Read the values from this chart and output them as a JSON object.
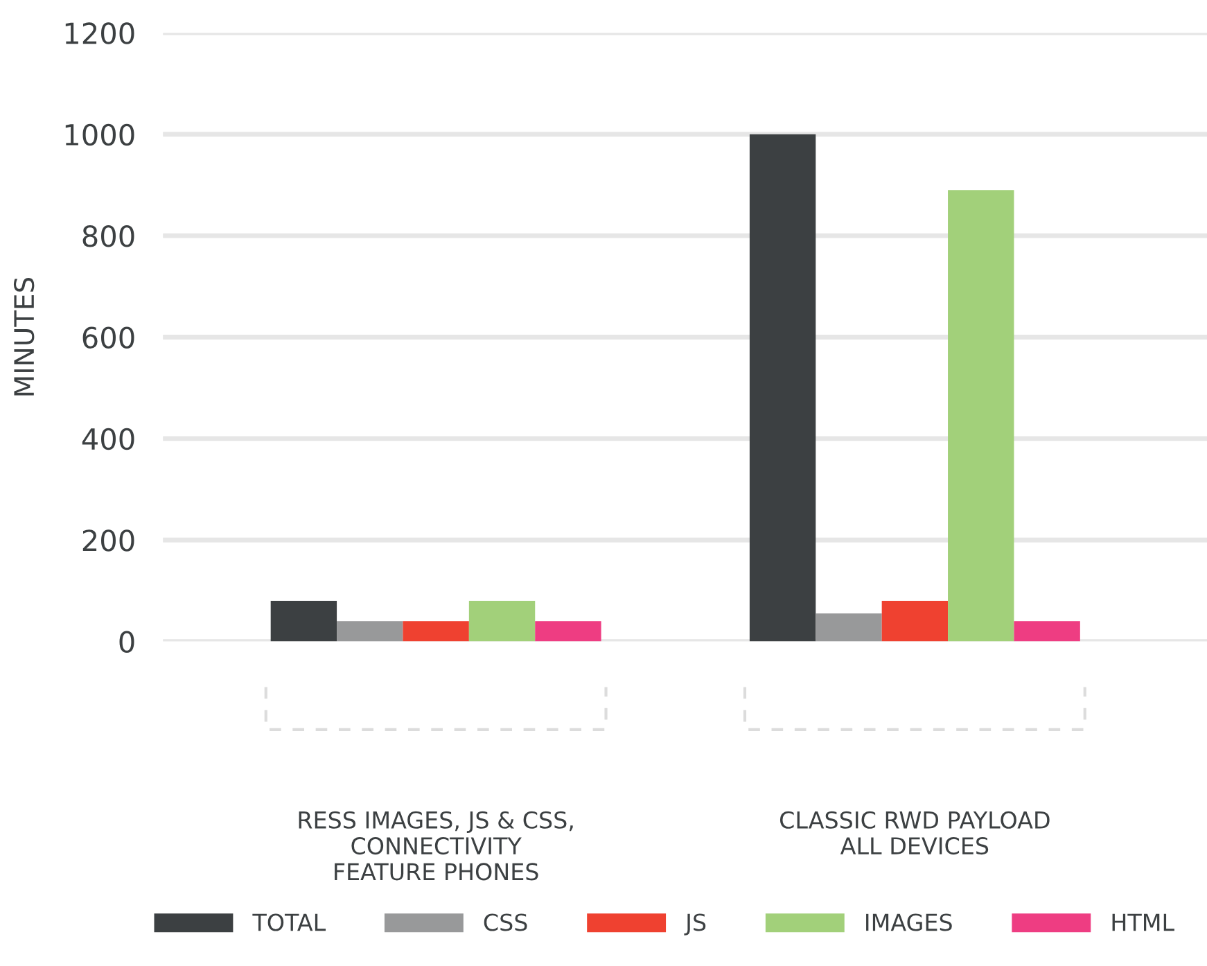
{
  "chart_data": {
    "type": "bar",
    "ylabel": "MINUTES",
    "categories": [
      "RESS IMAGES, JS & CSS,\nCONNECTIVITY\nFEATURE PHONES",
      "CLASSIC RWD PAYLOAD\nALL DEVICES"
    ],
    "series": [
      {
        "name": "TOTAL",
        "color": "#3c4042",
        "values": [
          80,
          1000
        ]
      },
      {
        "name": "CSS",
        "color": "#98999a",
        "values": [
          40,
          55
        ]
      },
      {
        "name": "JS",
        "color": "#ef4130",
        "values": [
          40,
          80
        ]
      },
      {
        "name": "IMAGES",
        "color": "#a2d07a",
        "values": [
          80,
          890
        ]
      },
      {
        "name": "HTML",
        "color": "#ee3d82",
        "values": [
          40,
          40
        ]
      }
    ],
    "ylim": [
      0,
      1200
    ],
    "yticks": [
      0,
      200,
      400,
      600,
      800,
      1000,
      1200
    ],
    "grid": "y",
    "legend": "bottom"
  }
}
